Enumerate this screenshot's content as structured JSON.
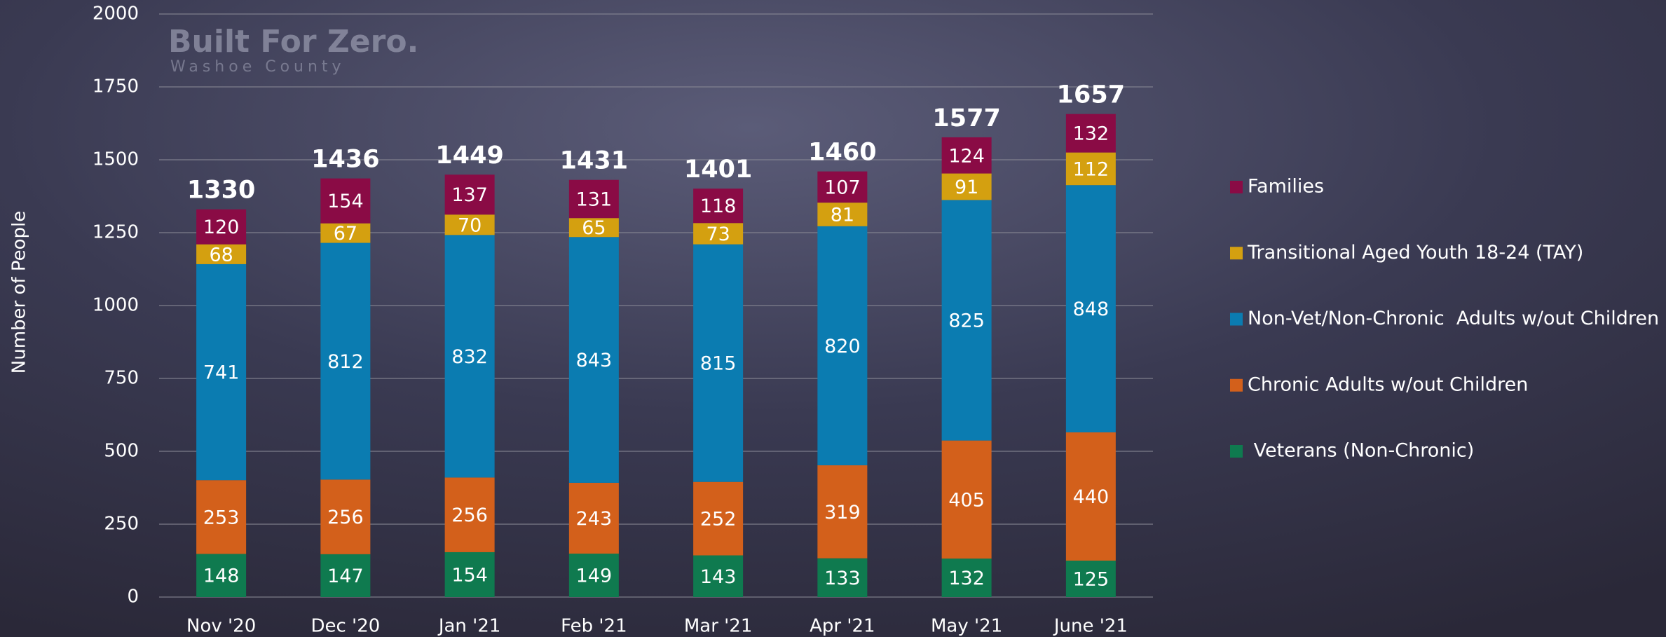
{
  "chart_data": {
    "type": "stacked_bar",
    "annotations": [
      "Built For Zero.",
      "Washoe County"
    ],
    "y_label": "Number of People",
    "categories": [
      "Nov '20",
      "Dec '20",
      "Jan '21",
      "Feb '21",
      "Mar '21",
      "Apr '21",
      "May '21",
      "June '21"
    ],
    "series": [
      {
        "name": " Veterans (Non-Chronic)",
        "color": "#0f7a4f",
        "values": [
          148,
          147,
          154,
          149,
          143,
          133,
          132,
          125
        ]
      },
      {
        "name": "Chronic Adults w/out Children",
        "color": "#d3601b",
        "values": [
          253,
          256,
          256,
          243,
          252,
          319,
          405,
          440
        ]
      },
      {
        "name": "Non-Vet/Non-Chronic  Adults w/out Children",
        "color": "#0b7cb1",
        "values": [
          741,
          812,
          832,
          843,
          815,
          820,
          825,
          848
        ]
      },
      {
        "name": "Transitional Aged Youth 18-24 (TAY)",
        "color": "#d4a010",
        "values": [
          68,
          67,
          70,
          65,
          73,
          81,
          91,
          112
        ]
      },
      {
        "name": "Families",
        "color": "#8a0b45",
        "values": [
          120,
          154,
          137,
          131,
          118,
          107,
          124,
          132
        ]
      }
    ],
    "totals": [
      1330,
      1436,
      1449,
      1431,
      1401,
      1460,
      1577,
      1657
    ],
    "ylim": [
      0,
      2000
    ],
    "yticks": [
      0,
      250,
      500,
      750,
      1000,
      1250,
      1500,
      1750,
      2000
    ],
    "grid": true,
    "legend": "right"
  }
}
